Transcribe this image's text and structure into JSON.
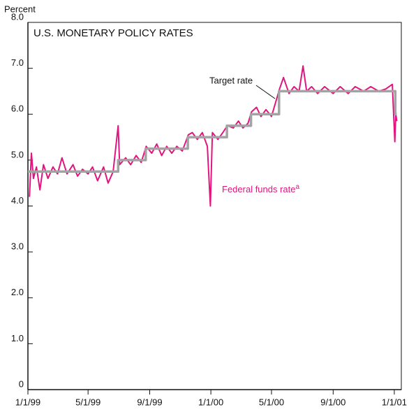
{
  "chart_data": {
    "type": "line",
    "title": "U.S. MONETARY POLICY RATES",
    "y_axis_label": "Percent",
    "annotations": {
      "target": "Target rate",
      "funds": "Federal funds rate",
      "funds_note": "a"
    },
    "xlim": [
      "1/1/99",
      "1/15/01"
    ],
    "xticks": [
      "1/1/99",
      "5/1/99",
      "9/1/99",
      "1/1/00",
      "5/1/00",
      "9/1/00",
      "1/1/01"
    ],
    "ylim": [
      0,
      8
    ],
    "yticks": [
      0,
      {
        "value": 1,
        "label": "1.0"
      },
      {
        "value": 2,
        "label": "2.0"
      },
      {
        "value": 3,
        "label": "3.0"
      },
      {
        "value": 4,
        "label": "4.0"
      },
      {
        "value": 5,
        "label": "5.0"
      },
      {
        "value": 6,
        "label": "6.0"
      },
      {
        "value": 7,
        "label": "7.0"
      },
      {
        "value": 8,
        "label": "8.0"
      }
    ],
    "series": [
      {
        "name": "Federal funds rate",
        "color": "#e0157f",
        "x": [
          "1/4/99",
          "1/8/99",
          "1/12/99",
          "1/18/99",
          "1/25/99",
          "2/1/99",
          "2/10/99",
          "2/20/99",
          "3/1/99",
          "3/10/99",
          "3/20/99",
          "4/1/99",
          "4/10/99",
          "4/20/99",
          "5/1/99",
          "5/10/99",
          "5/20/99",
          "6/1/99",
          "6/10/99",
          "6/20/99",
          "6/30/99",
          "7/3/99",
          "7/15/99",
          "7/25/99",
          "8/5/99",
          "8/15/99",
          "8/25/99",
          "9/5/99",
          "9/15/99",
          "9/25/99",
          "10/5/99",
          "10/15/99",
          "10/25/99",
          "11/5/99",
          "11/17/99",
          "11/25/99",
          "12/5/99",
          "12/15/99",
          "12/25/99",
          "12/31/99",
          "1/4/00",
          "1/15/00",
          "1/25/00",
          "2/3/00",
          "2/15/00",
          "2/25/00",
          "3/5/00",
          "3/15/00",
          "3/22/00",
          "4/1/00",
          "4/10/00",
          "4/20/00",
          "5/1/00",
          "5/17/00",
          "5/25/00",
          "6/5/00",
          "6/15/00",
          "6/25/00",
          "7/3/00",
          "7/10/00",
          "7/20/00",
          "8/1/00",
          "8/15/00",
          "9/1/00",
          "9/15/00",
          "10/1/00",
          "10/15/00",
          "11/1/00",
          "11/15/00",
          "12/1/00",
          "12/15/00",
          "12/28/00",
          "1/2/01",
          "1/4/01",
          "1/6/01"
        ],
        "values": [
          4.2,
          5.15,
          4.6,
          4.85,
          4.35,
          4.9,
          4.6,
          4.85,
          4.7,
          5.05,
          4.7,
          4.9,
          4.65,
          4.8,
          4.7,
          4.85,
          4.55,
          4.85,
          4.5,
          4.75,
          5.75,
          4.9,
          5.05,
          4.9,
          5.1,
          4.95,
          5.3,
          5.15,
          5.35,
          5.1,
          5.3,
          5.15,
          5.3,
          5.2,
          5.55,
          5.6,
          5.45,
          5.6,
          5.3,
          4.0,
          5.6,
          5.45,
          5.6,
          5.75,
          5.7,
          5.85,
          5.7,
          5.8,
          6.05,
          6.15,
          5.95,
          6.1,
          5.95,
          6.55,
          6.8,
          6.45,
          6.6,
          6.5,
          7.05,
          6.5,
          6.6,
          6.45,
          6.6,
          6.45,
          6.6,
          6.45,
          6.6,
          6.5,
          6.6,
          6.5,
          6.55,
          6.65,
          5.4,
          6.0,
          5.85
        ]
      },
      {
        "name": "Target rate",
        "color": "#a3a3a3",
        "x": [
          "1/1/99",
          "6/30/99",
          "6/30/99",
          "8/24/99",
          "8/24/99",
          "11/16/99",
          "11/16/99",
          "2/2/00",
          "2/2/00",
          "3/21/00",
          "3/21/00",
          "5/16/00",
          "5/16/00",
          "1/3/01",
          "1/3/01",
          "1/6/01"
        ],
        "values": [
          4.75,
          4.75,
          5.0,
          5.0,
          5.25,
          5.25,
          5.5,
          5.5,
          5.75,
          5.75,
          6.0,
          6.0,
          6.5,
          6.5,
          6.0,
          6.0
        ]
      }
    ]
  }
}
